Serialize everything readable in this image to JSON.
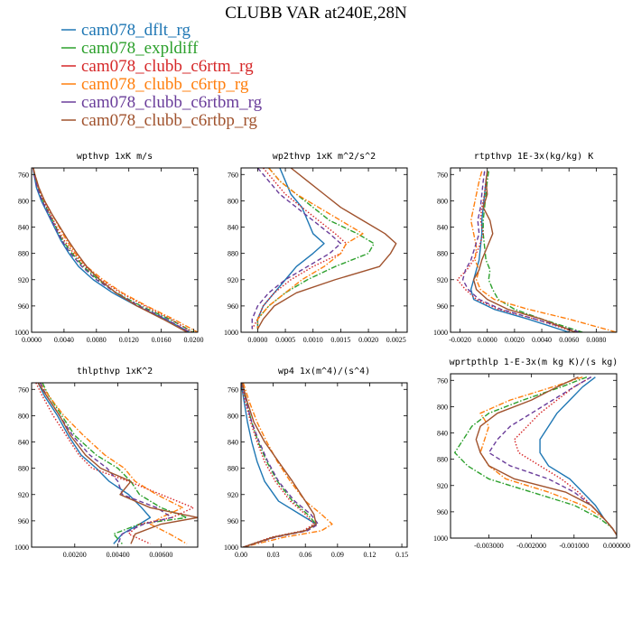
{
  "title": "CLUBB VAR at240E,28N",
  "legend": [
    {
      "name": "cam078_dflt_rg",
      "color": "#1f77b4",
      "dash": "solid"
    },
    {
      "name": "cam078_expldiff",
      "color": "#2ca02c",
      "dash": "dashdot"
    },
    {
      "name": "cam078_clubb_c6rtm_rg",
      "color": "#d62728",
      "dash": "dotted"
    },
    {
      "name": "cam078_clubb_c6rtp_rg",
      "color": "#ff7f0e",
      "dash": "dashdot"
    },
    {
      "name": "cam078_clubb_c6rtbm_rg",
      "color": "#6a3d9a",
      "dash": "dashed"
    },
    {
      "name": "cam078_clubb_c6rtbp_rg",
      "color": "#a0522d",
      "dash": "solid"
    }
  ],
  "chart_data": [
    {
      "type": "line",
      "title": "wpthvp  1xK m/s",
      "xlim": [
        0.0,
        0.0205
      ],
      "ylim": [
        750,
        1000
      ],
      "y_inverted": true,
      "xticks": [
        0.0,
        0.004,
        0.008,
        0.012,
        0.016,
        0.02
      ],
      "xtick_labels": [
        "0.0000",
        "0.0040",
        "0.0080",
        "0.0120",
        "0.0160",
        "0.0200"
      ],
      "yticks": [
        760,
        800,
        840,
        880,
        920,
        960,
        1000
      ],
      "ytick_labels": [
        "760",
        "800",
        "840",
        "880",
        "920",
        "960",
        "1000"
      ],
      "y": [
        750,
        760,
        780,
        800,
        820,
        840,
        860,
        880,
        900,
        920,
        940,
        960,
        980,
        1000
      ],
      "series": [
        {
          "x": [
            0.0002,
            0.0003,
            0.0006,
            0.0012,
            0.002,
            0.0028,
            0.0036,
            0.0046,
            0.0058,
            0.0076,
            0.01,
            0.013,
            0.0165,
            0.0195
          ]
        },
        {
          "x": [
            0.0002,
            0.0004,
            0.0008,
            0.0014,
            0.0022,
            0.003,
            0.0038,
            0.005,
            0.0064,
            0.0082,
            0.0105,
            0.0135,
            0.017,
            0.02
          ]
        },
        {
          "x": [
            0.0002,
            0.0004,
            0.0008,
            0.0015,
            0.0023,
            0.0031,
            0.004,
            0.0052,
            0.0066,
            0.0085,
            0.011,
            0.014,
            0.0172,
            0.0198
          ]
        },
        {
          "x": [
            0.0002,
            0.0004,
            0.0009,
            0.0016,
            0.0025,
            0.0034,
            0.0043,
            0.0054,
            0.0068,
            0.0088,
            0.0112,
            0.0142,
            0.0175,
            0.0205
          ]
        },
        {
          "x": [
            0.0002,
            0.0003,
            0.0007,
            0.0013,
            0.0021,
            0.0029,
            0.0037,
            0.0048,
            0.0062,
            0.008,
            0.0104,
            0.0133,
            0.0166,
            0.0195
          ]
        },
        {
          "x": [
            0.0002,
            0.0004,
            0.0009,
            0.0016,
            0.0025,
            0.0035,
            0.0045,
            0.0056,
            0.0068,
            0.0084,
            0.0104,
            0.013,
            0.0162,
            0.0192
          ]
        }
      ]
    },
    {
      "type": "line",
      "title": "wp2thvp  1xK m^2/s^2",
      "xlim": [
        -0.0003,
        0.0027
      ],
      "ylim": [
        750,
        1000
      ],
      "y_inverted": true,
      "xticks": [
        0.0,
        0.0005,
        0.001,
        0.0015,
        0.002,
        0.0025
      ],
      "xtick_labels": [
        "0.0000",
        "0.0005",
        "0.0010",
        "0.0015",
        "0.0020",
        "0.0025"
      ],
      "yticks": [
        760,
        800,
        840,
        880,
        920,
        960,
        1000
      ],
      "ytick_labels": [
        "760",
        "800",
        "840",
        "880",
        "920",
        "960",
        "1000"
      ],
      "y": [
        750,
        770,
        790,
        810,
        830,
        850,
        865,
        880,
        900,
        920,
        940,
        960,
        980,
        995
      ],
      "series": [
        {
          "x": [
            0.0004,
            0.0005,
            0.0006,
            0.0008,
            0.0009,
            0.001,
            0.0012,
            0.001,
            0.0007,
            0.0005,
            0.0003,
            0.0001,
            0.0,
            0.0
          ]
        },
        {
          "x": [
            0.0002,
            0.0004,
            0.0007,
            0.001,
            0.0013,
            0.0018,
            0.0021,
            0.002,
            0.0014,
            0.0009,
            0.0005,
            0.0002,
            0.0,
            0.0
          ]
        },
        {
          "x": [
            0.0001,
            0.0003,
            0.0005,
            0.0008,
            0.0011,
            0.0014,
            0.0016,
            0.0015,
            0.001,
            0.0006,
            0.0003,
            0.0001,
            0.0,
            -0.0001
          ]
        },
        {
          "x": [
            0.0002,
            0.0004,
            0.0007,
            0.0011,
            0.0015,
            0.0019,
            0.0016,
            0.0015,
            0.0012,
            0.0008,
            0.0005,
            0.0002,
            0.0,
            0.0
          ]
        },
        {
          "x": [
            0.0,
            0.0002,
            0.0004,
            0.0007,
            0.001,
            0.0013,
            0.0015,
            0.0013,
            0.0009,
            0.0005,
            0.0002,
            0.0,
            -0.0001,
            -0.0001
          ]
        },
        {
          "x": [
            0.0006,
            0.0009,
            0.0012,
            0.0015,
            0.0019,
            0.0023,
            0.0025,
            0.0024,
            0.0022,
            0.0014,
            0.0007,
            0.0003,
            0.0001,
            0.0
          ]
        }
      ]
    },
    {
      "type": "line",
      "title": "rtpthvp  1E-3x(kg/kg) K",
      "xlim": [
        -0.0027,
        0.0095
      ],
      "ylim": [
        750,
        1000
      ],
      "y_inverted": true,
      "xticks": [
        -0.002,
        0.0,
        0.002,
        0.004,
        0.006,
        0.008
      ],
      "xtick_labels": [
        "-0.0020",
        "0.0000",
        "0.0020",
        "0.0040",
        "0.0060",
        "0.0080"
      ],
      "yticks": [
        760,
        800,
        840,
        880,
        920,
        960,
        1000
      ],
      "ytick_labels": [
        "760",
        "800",
        "840",
        "880",
        "920",
        "960",
        "1000"
      ],
      "y": [
        755,
        770,
        790,
        810,
        830,
        850,
        870,
        890,
        905,
        920,
        935,
        950,
        965,
        980,
        1000
      ],
      "series": [
        {
          "x": [
            0.0,
            -0.0001,
            -0.0002,
            -0.0003,
            -0.0004,
            -0.0004,
            -0.0005,
            -0.0006,
            -0.0008,
            -0.001,
            -0.0012,
            -0.001,
            0.0005,
            0.003,
            0.006
          ]
        },
        {
          "x": [
            0.0001,
            0.0,
            -0.0001,
            -0.0002,
            -0.0003,
            -0.0003,
            -0.0002,
            -0.0001,
            0.0002,
            0.0001,
            0.0004,
            0.0008,
            0.002,
            0.004,
            0.007
          ]
        },
        {
          "x": [
            0.0,
            -0.0001,
            -0.0002,
            -0.0004,
            -0.0005,
            -0.0003,
            -0.0006,
            -0.001,
            -0.0015,
            -0.0022,
            -0.0016,
            -0.0008,
            0.0008,
            0.0035,
            0.0065
          ]
        },
        {
          "x": [
            -0.0004,
            -0.0006,
            -0.0008,
            -0.001,
            -0.0012,
            -0.001,
            -0.0008,
            -0.0009,
            -0.0006,
            -0.0008,
            -0.0005,
            0.0005,
            0.003,
            0.006,
            0.0095
          ]
        },
        {
          "x": [
            -0.0002,
            -0.0003,
            -0.0004,
            -0.0005,
            -0.0007,
            -0.0006,
            -0.0009,
            -0.0012,
            -0.0016,
            -0.0018,
            -0.0014,
            -0.0006,
            0.001,
            0.0035,
            0.0068
          ]
        },
        {
          "x": [
            0.0,
            -0.0001,
            0.0,
            -0.0003,
            0.0002,
            0.0004,
            0.0,
            -0.0004,
            -0.0006,
            -0.001,
            -0.0008,
            0.0,
            0.0015,
            0.004,
            0.0065
          ]
        }
      ]
    },
    {
      "type": "line",
      "title": "thlpthvp  1xK^2",
      "xlim": [
        0.0,
        0.0077
      ],
      "ylim": [
        750,
        1000
      ],
      "y_inverted": true,
      "xticks": [
        0.002,
        0.004,
        0.006
      ],
      "xtick_labels": [
        "0.00200",
        "0.00400",
        "0.00600"
      ],
      "yticks": [
        760,
        800,
        840,
        880,
        920,
        960,
        1000
      ],
      "ytick_labels": [
        "760",
        "800",
        "840",
        "880",
        "920",
        "960",
        "1000"
      ],
      "y": [
        750,
        770,
        800,
        830,
        860,
        880,
        900,
        920,
        940,
        955,
        965,
        980,
        995
      ],
      "series": [
        {
          "x": [
            0.0003,
            0.0006,
            0.0012,
            0.0017,
            0.0023,
            0.003,
            0.0036,
            0.0045,
            0.0051,
            0.0055,
            0.005,
            0.0042,
            0.0038
          ]
        },
        {
          "x": [
            0.0005,
            0.0008,
            0.0014,
            0.002,
            0.003,
            0.004,
            0.0046,
            0.005,
            0.006,
            0.0072,
            0.005,
            0.0038,
            0.0042
          ]
        },
        {
          "x": [
            0.0002,
            0.0005,
            0.001,
            0.0016,
            0.0022,
            0.0028,
            0.0045,
            0.006,
            0.0075,
            0.0065,
            0.005,
            0.0045,
            0.0055
          ]
        },
        {
          "x": [
            0.0004,
            0.0008,
            0.0015,
            0.0024,
            0.0034,
            0.0043,
            0.0048,
            0.0058,
            0.007,
            0.006,
            0.0055,
            0.0064,
            0.0072
          ]
        },
        {
          "x": [
            0.0004,
            0.0007,
            0.0013,
            0.0019,
            0.0027,
            0.0035,
            0.004,
            0.0042,
            0.0058,
            0.0065,
            0.0052,
            0.0042,
            0.004
          ]
        },
        {
          "x": [
            0.0003,
            0.0007,
            0.0013,
            0.0018,
            0.0025,
            0.0032,
            0.0046,
            0.0041,
            0.0055,
            0.0077,
            0.006,
            0.0048,
            0.0046
          ]
        }
      ]
    },
    {
      "type": "line",
      "title": "wp4  1x(m^4)/(s^4)",
      "xlim": [
        0.0,
        0.155
      ],
      "ylim": [
        750,
        1000
      ],
      "y_inverted": true,
      "xticks": [
        0.0,
        0.03,
        0.06,
        0.09,
        0.12,
        0.15
      ],
      "xtick_labels": [
        "0.00",
        "0.03",
        "0.06",
        "0.09",
        "0.12",
        "0.15"
      ],
      "yticks": [
        760,
        800,
        840,
        880,
        920,
        960,
        1000
      ],
      "ytick_labels": [
        "760",
        "800",
        "840",
        "880",
        "920",
        "960",
        "1000"
      ],
      "y": [
        750,
        780,
        810,
        840,
        870,
        900,
        930,
        950,
        965,
        975,
        985,
        1000
      ],
      "series": [
        {
          "x": [
            0.0,
            0.003,
            0.006,
            0.01,
            0.015,
            0.022,
            0.035,
            0.055,
            0.07,
            0.06,
            0.03,
            0.002
          ]
        },
        {
          "x": [
            0.001,
            0.005,
            0.01,
            0.016,
            0.024,
            0.034,
            0.048,
            0.062,
            0.07,
            0.06,
            0.03,
            0.002
          ]
        },
        {
          "x": [
            0.0,
            0.004,
            0.009,
            0.015,
            0.022,
            0.032,
            0.046,
            0.06,
            0.068,
            0.058,
            0.028,
            0.002
          ]
        },
        {
          "x": [
            0.002,
            0.008,
            0.015,
            0.024,
            0.034,
            0.046,
            0.06,
            0.075,
            0.085,
            0.075,
            0.04,
            0.002
          ]
        },
        {
          "x": [
            0.001,
            0.005,
            0.01,
            0.017,
            0.025,
            0.035,
            0.05,
            0.065,
            0.072,
            0.062,
            0.032,
            0.002
          ]
        },
        {
          "x": [
            0.001,
            0.006,
            0.012,
            0.022,
            0.035,
            0.048,
            0.06,
            0.068,
            0.07,
            0.06,
            0.03,
            0.002
          ]
        }
      ]
    },
    {
      "type": "line",
      "title": "wprtpthlp  1-E-3x(m kg K)/(s kg)",
      "xlim": [
        -0.0039,
        0.0
      ],
      "ylim": [
        750,
        1000
      ],
      "y_inverted": true,
      "xticks": [
        -0.003,
        -0.002,
        -0.001,
        0.0
      ],
      "xtick_labels": [
        "-0.003000",
        "-0.002000",
        "-0.001000",
        "0.000000"
      ],
      "yticks": [
        760,
        800,
        840,
        880,
        920,
        960,
        1000
      ],
      "ytick_labels": [
        "760",
        "800",
        "840",
        "880",
        "920",
        "960",
        "1000"
      ],
      "y": [
        755,
        770,
        790,
        810,
        830,
        850,
        870,
        890,
        910,
        930,
        950,
        970,
        985,
        995
      ],
      "series": [
        {
          "x": [
            -0.0005,
            -0.0008,
            -0.0011,
            -0.0014,
            -0.0016,
            -0.0018,
            -0.0018,
            -0.0016,
            -0.0011,
            -0.0008,
            -0.0005,
            -0.0003,
            -0.0001,
            0.0
          ]
        },
        {
          "x": [
            -0.0007,
            -0.0013,
            -0.0022,
            -0.003,
            -0.0034,
            -0.0036,
            -0.0038,
            -0.0035,
            -0.003,
            -0.002,
            -0.001,
            -0.0004,
            -0.0001,
            0.0
          ]
        },
        {
          "x": [
            -0.0006,
            -0.001,
            -0.0014,
            -0.0018,
            -0.0021,
            -0.0024,
            -0.0023,
            -0.0018,
            -0.0013,
            -0.0009,
            -0.0006,
            -0.0003,
            -0.0001,
            0.0
          ]
        },
        {
          "x": [
            -0.0008,
            -0.0015,
            -0.0025,
            -0.0032,
            -0.003,
            -0.0031,
            -0.0032,
            -0.003,
            -0.0026,
            -0.0016,
            -0.0008,
            -0.0003,
            -0.0001,
            0.0
          ]
        },
        {
          "x": [
            -0.0006,
            -0.001,
            -0.0015,
            -0.002,
            -0.0025,
            -0.0028,
            -0.003,
            -0.0025,
            -0.0016,
            -0.001,
            -0.0006,
            -0.0003,
            -0.0001,
            0.0
          ]
        },
        {
          "x": [
            -0.0009,
            -0.0014,
            -0.002,
            -0.0028,
            -0.0032,
            -0.0033,
            -0.0032,
            -0.003,
            -0.0024,
            -0.0012,
            -0.0006,
            -0.0003,
            -0.0001,
            0.0
          ]
        }
      ]
    }
  ]
}
